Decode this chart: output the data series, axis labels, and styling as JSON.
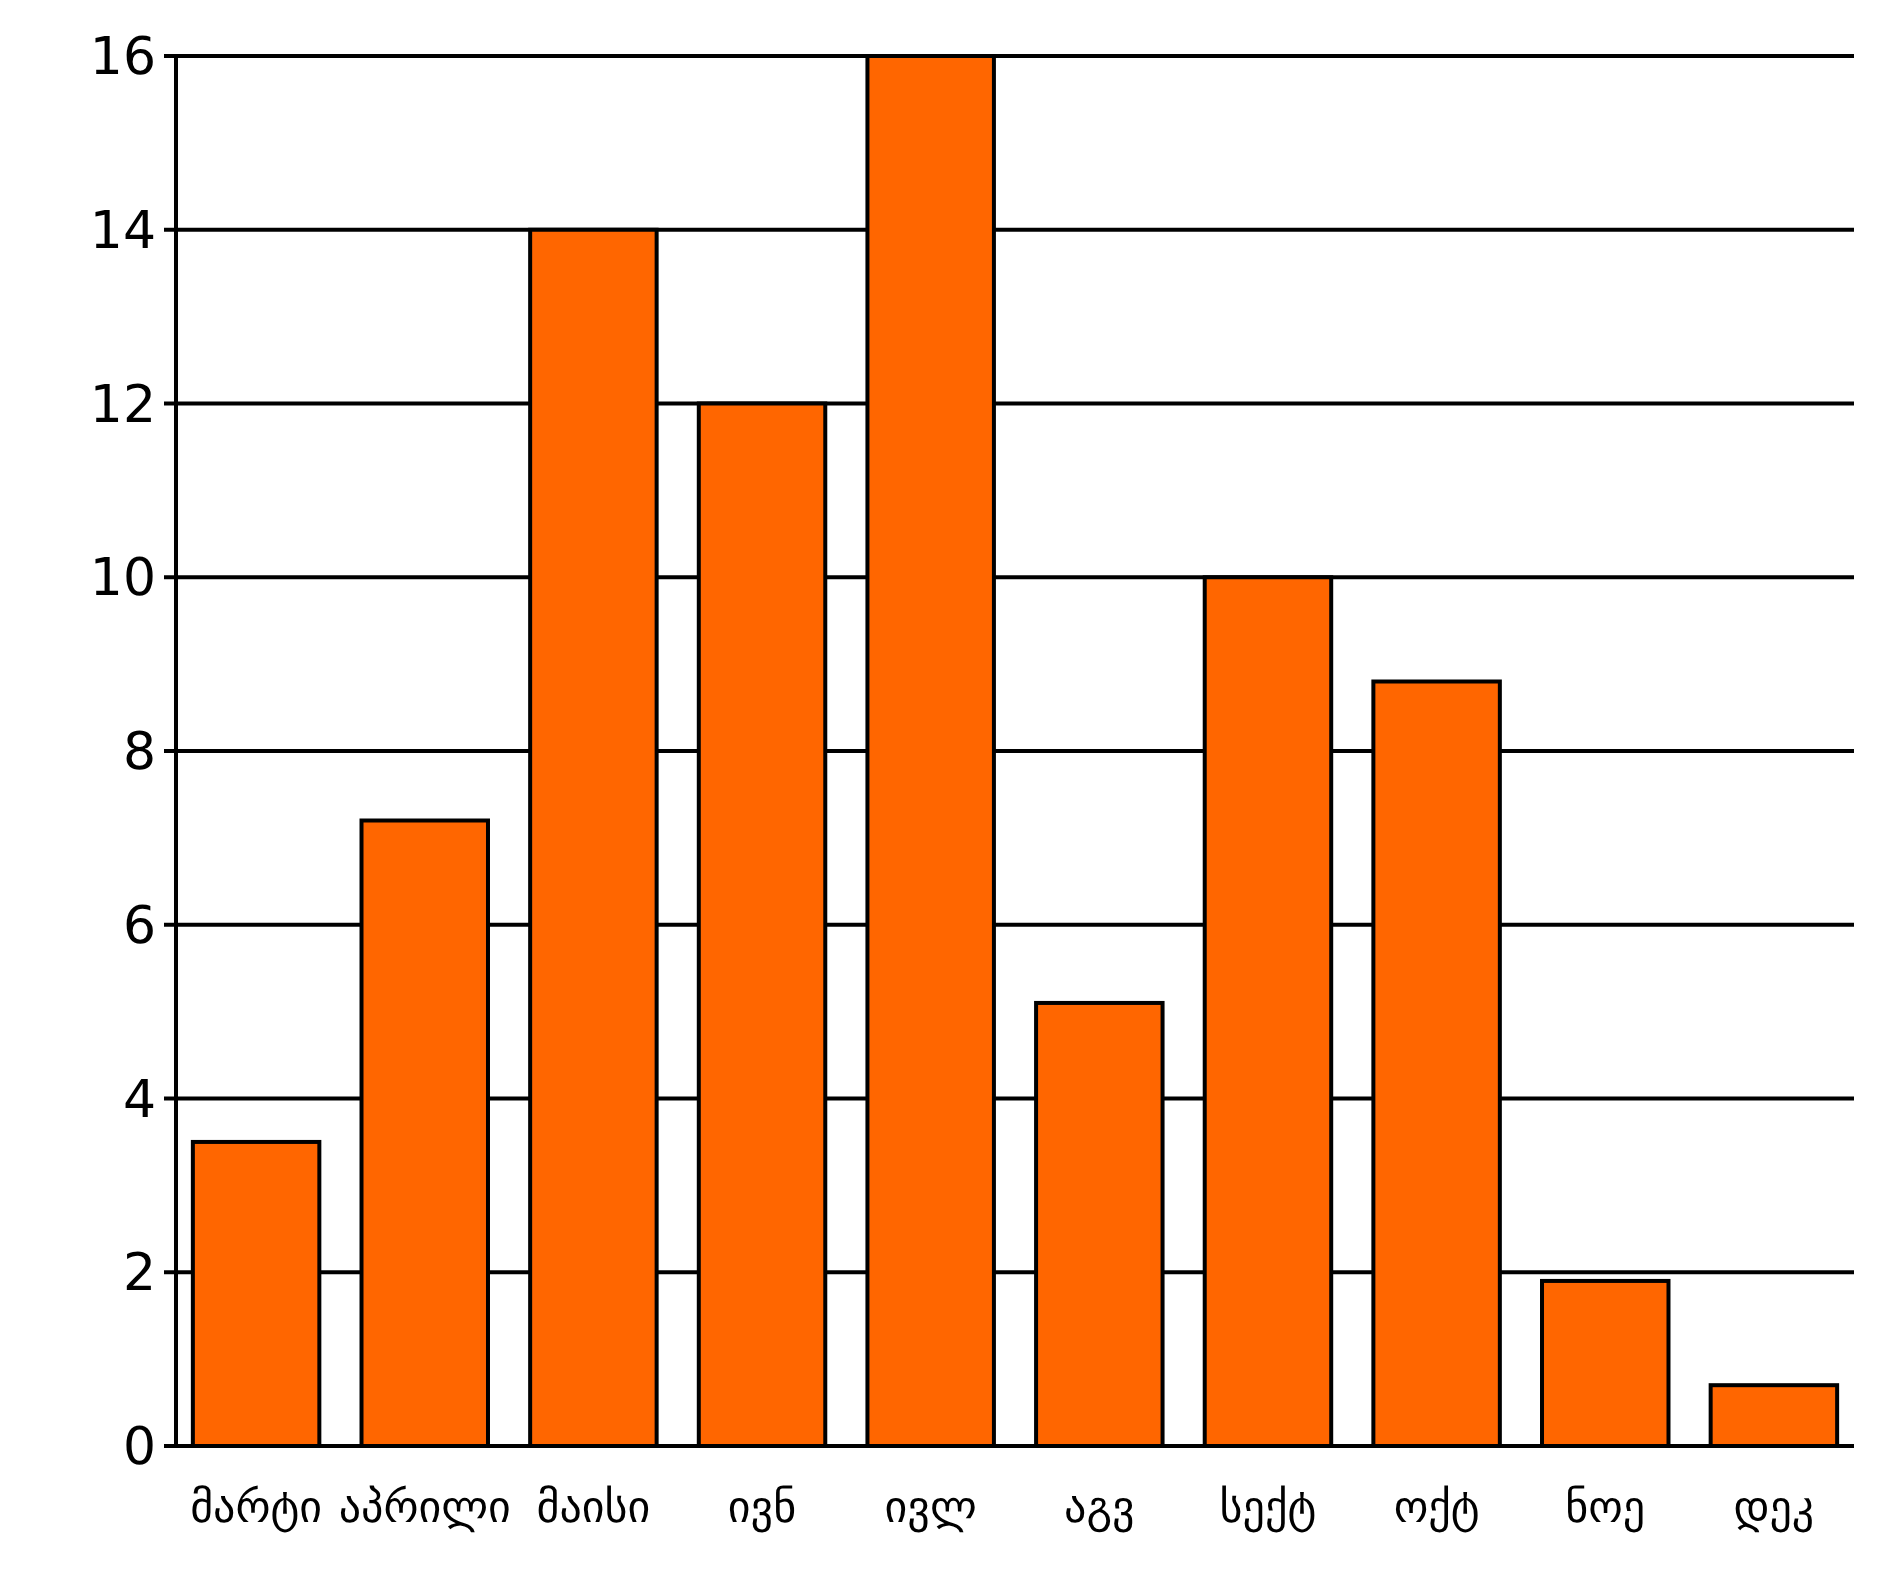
{
  "chart_data": {
    "type": "bar",
    "categories": [
      "მარტი",
      "აპრილი",
      "მაისი",
      "ივნ",
      "ივლ",
      "აგვ",
      "სექტ",
      "ოქტ",
      "ნოე",
      "დეკ"
    ],
    "values": [
      3.5,
      7.2,
      14,
      12,
      16,
      5.1,
      10,
      8.8,
      1.9,
      0.7
    ],
    "color": "#ff6600",
    "ylim": [
      0,
      16
    ],
    "yticks": [
      0,
      2,
      4,
      6,
      8,
      10,
      12,
      14,
      16
    ],
    "grid": "y"
  }
}
